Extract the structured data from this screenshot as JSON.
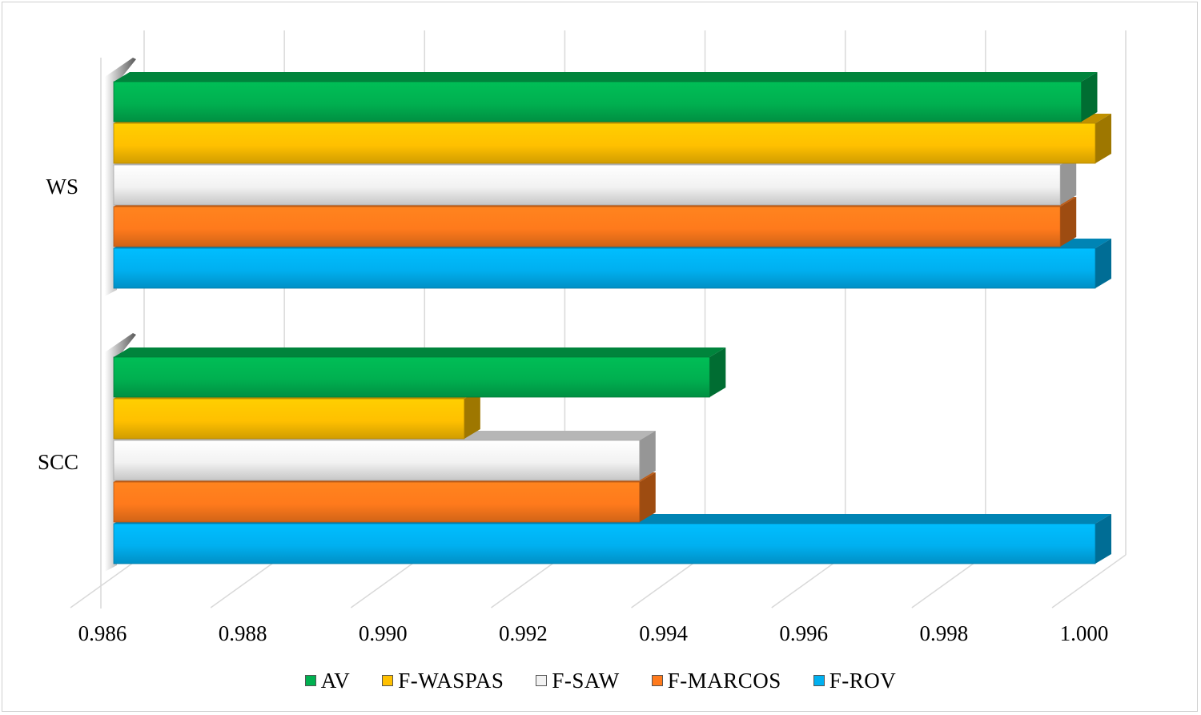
{
  "chart_data": {
    "type": "bar",
    "orientation": "horizontal",
    "three_d": true,
    "categories": [
      "WS",
      "SCC"
    ],
    "series": [
      {
        "name": "AV",
        "color": "#00b050",
        "values": [
          0.9998,
          0.9945
        ]
      },
      {
        "name": "F-WASPAS",
        "color": "#ffc000",
        "values": [
          1.0,
          0.991
        ]
      },
      {
        "name": "F-SAW",
        "color": "#f2f2f2",
        "values": [
          0.9995,
          0.9935
        ]
      },
      {
        "name": "F-MARCOS",
        "color": "#ff7a1c",
        "values": [
          0.9995,
          0.9935
        ]
      },
      {
        "name": "F-ROV",
        "color": "#00b0f0",
        "values": [
          1.0,
          1.0
        ]
      }
    ],
    "xlim": [
      0.986,
      1.0
    ],
    "xticks": [
      0.986,
      0.988,
      0.99,
      0.992,
      0.994,
      0.996,
      0.998,
      1.0
    ],
    "xtick_labels": [
      "0.986",
      "0.988",
      "0.990",
      "0.992",
      "0.994",
      "0.996",
      "0.998",
      "1.000"
    ],
    "title": "",
    "xlabel": "",
    "ylabel": "",
    "grid": true,
    "legend_position": "bottom"
  }
}
